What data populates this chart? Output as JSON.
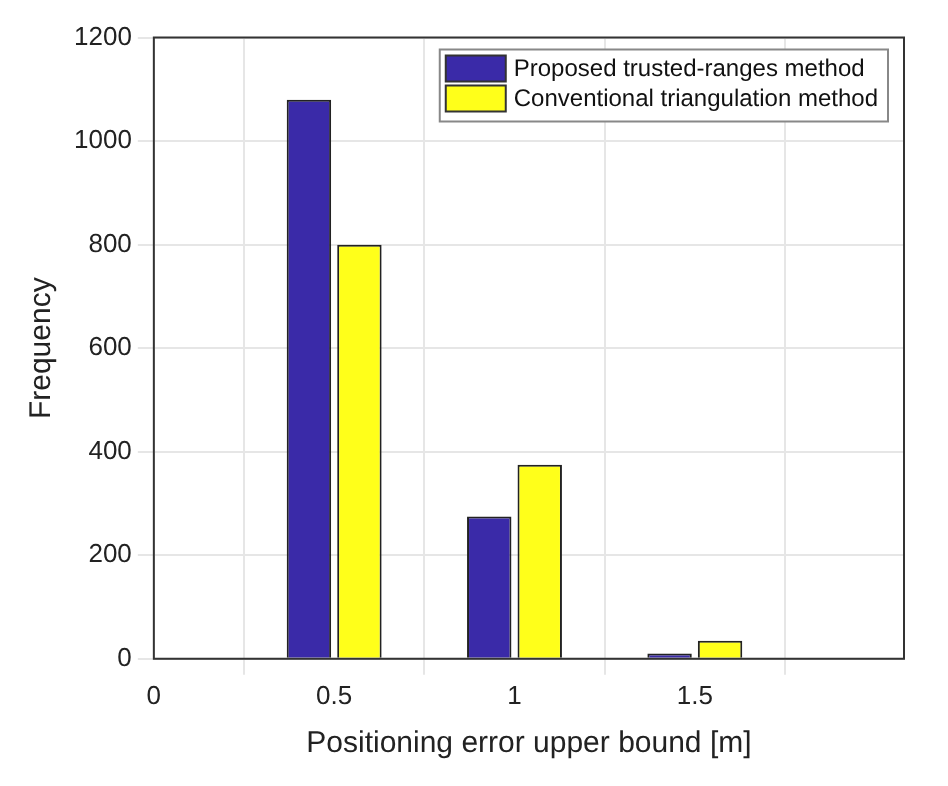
{
  "chart_data": {
    "type": "bar",
    "xlabel": "Positioning error upper bound [m]",
    "ylabel": "Frequency",
    "x": [
      0.5,
      1,
      1.5
    ],
    "series": [
      {
        "name": "Proposed trusted-ranges method",
        "color": "#3a2aa8",
        "values": [
          1080,
          275,
          10
        ]
      },
      {
        "name": "Conventional triangulation method",
        "color": "#ffff1a",
        "values": [
          800,
          375,
          35
        ]
      }
    ],
    "xlim": [
      0,
      2.08
    ],
    "xticks": [
      0,
      0.5,
      1,
      1.5
    ],
    "ylim": [
      0,
      1200
    ],
    "yticks": [
      0,
      200,
      400,
      600,
      800,
      1000,
      1200
    ],
    "grid": true,
    "legend": "top right"
  }
}
